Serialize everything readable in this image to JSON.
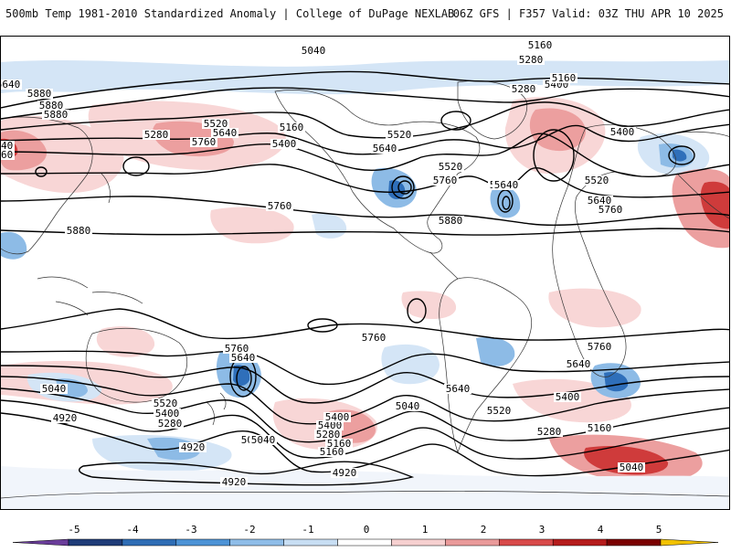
{
  "header": {
    "title_left": "500mb Temp 1981-2010 Standardized Anomaly | College of DuPage NEXLAB",
    "title_right": "06Z GFS | F357 Valid: 03Z THU APR 10 2025"
  },
  "contour_labels": [
    "5040",
    "5160",
    "5280",
    "5400",
    "5520",
    "5640",
    "5760",
    "5880",
    "4920"
  ],
  "map_labels": [
    "5040",
    "5160",
    "5280",
    "5400",
    "5520",
    "5640",
    "5760",
    "5880",
    "5880",
    "5880",
    "5640",
    "5760",
    "5280",
    "5160",
    "5040",
    "5520",
    "5400",
    "5640",
    "5520",
    "5760",
    "5880",
    "5640",
    "5280",
    "5160",
    "5400",
    "5640",
    "5520",
    "5760",
    "5760",
    "5640",
    "5880",
    "5760",
    "5640",
    "5520",
    "5400",
    "5280",
    "5040",
    "4920",
    "4920",
    "4920",
    "5760",
    "5640",
    "5520",
    "5400",
    "5280",
    "5160",
    "5040",
    "5760",
    "5640",
    "5520",
    "5400",
    "5280",
    "5160",
    "5040",
    "4920",
    "5040",
    "5640",
    "5400",
    "5160",
    "5040"
  ],
  "colorbar": {
    "ticks": [
      "-5",
      "-4",
      "-3",
      "-2",
      "-1",
      "0",
      "1",
      "2",
      "3",
      "4",
      "5"
    ],
    "colors": [
      "#6a3d9a",
      "#1f3c78",
      "#2f6db5",
      "#4d93d6",
      "#8fbde8",
      "#c8def3",
      "#ffffff",
      "#f6d0d0",
      "#e99a9a",
      "#d84a4a",
      "#b51c1c",
      "#7a0000",
      "#f2c200"
    ]
  },
  "colors": {
    "warm_light": "#f8d6d6",
    "warm_mid": "#ec9f9f",
    "warm_strong": "#cf3b3b",
    "cool_light": "#d4e5f6",
    "cool_mid": "#8dbbe6",
    "cool_strong": "#2f6fba",
    "coast": "#333333",
    "contour": "#000000"
  },
  "icons": {
    "colorbar_left_end": "triangle-left-icon",
    "colorbar_right_end": "triangle-right-icon"
  }
}
